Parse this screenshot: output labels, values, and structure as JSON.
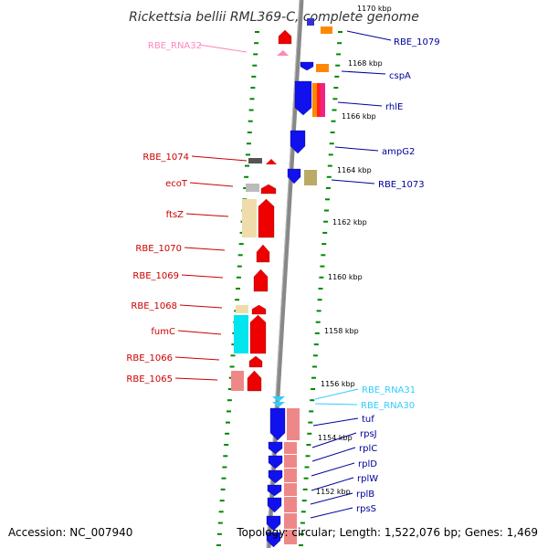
{
  "title": "Rickettsia bellii RML369-C, complete genome",
  "accession": "Accession: NC_007940",
  "topology": "Topology: circular; Length: 1,522,076 bp; Genes: 1,469",
  "colors": {
    "left_label": "#cc0000",
    "right_label": "#000099",
    "rna_pink": "#ff88bb",
    "rna_cyan": "#33ccff",
    "ticks": "#008800",
    "backbone": "#888888"
  },
  "kbp_ticks": [
    "1170 kbp",
    "1168 kbp",
    "1166 kbp",
    "1164 kbp",
    "1162 kbp",
    "1160 kbp",
    "1158 kbp",
    "1156 kbp",
    "1154 kbp",
    "1152 kbp"
  ],
  "left_labels": [
    "RBE_RNA32",
    "RBE_1074",
    "ecoT",
    "ftsZ",
    "RBE_1070",
    "RBE_1069",
    "RBE_1068",
    "fumC",
    "RBE_1066",
    "RBE_1065"
  ],
  "right_labels": [
    "RBE_1079",
    "cspA",
    "rhlE",
    "ampG2",
    "RBE_1073",
    "RBE_RNA31",
    "RBE_RNA30",
    "tuf",
    "rpsJ",
    "rplC",
    "rplD",
    "rplW",
    "rplB",
    "rpsS"
  ]
}
